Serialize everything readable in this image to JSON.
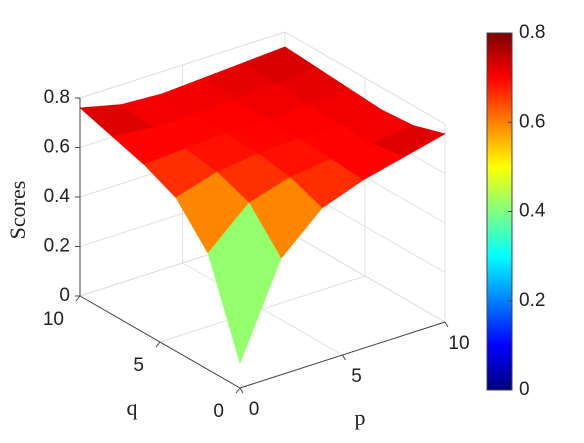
{
  "chart_data": {
    "type": "surface",
    "zlabel": "Scores",
    "xlabel": "p",
    "ylabel": "q",
    "x": [
      0,
      2,
      4,
      6,
      8,
      10
    ],
    "y": [
      0,
      2,
      4,
      6,
      8,
      10
    ],
    "z": [
      [
        0.1,
        0.47,
        0.62,
        0.68,
        0.72,
        0.76
      ],
      [
        0.47,
        0.62,
        0.67,
        0.69,
        0.7,
        0.72
      ],
      [
        0.62,
        0.67,
        0.69,
        0.7,
        0.7,
        0.71
      ],
      [
        0.68,
        0.69,
        0.7,
        0.7,
        0.71,
        0.72
      ],
      [
        0.72,
        0.7,
        0.7,
        0.71,
        0.72,
        0.73
      ],
      [
        0.76,
        0.72,
        0.71,
        0.72,
        0.73,
        0.74
      ]
    ],
    "xlim": [
      0,
      10
    ],
    "xticks": [
      0,
      5,
      10
    ],
    "ylim": [
      0,
      10
    ],
    "yticks": [
      0,
      5,
      10
    ],
    "zlim": [
      0,
      0.8
    ],
    "zticks": [
      0,
      0.2,
      0.4,
      0.6,
      0.8
    ],
    "colormap": "jet",
    "clim": [
      0,
      0.8
    ],
    "colorbar_ticks": [
      0,
      0.2,
      0.4,
      0.6,
      0.8
    ],
    "grid": true
  }
}
